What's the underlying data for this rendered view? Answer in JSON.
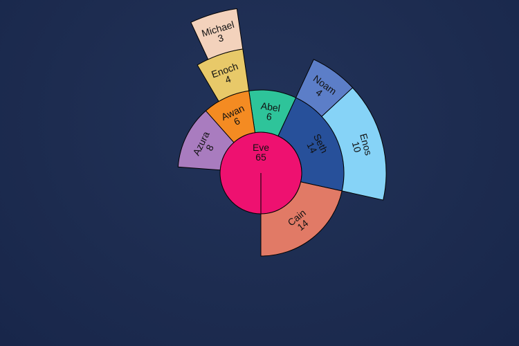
{
  "chart_data": {
    "type": "sunburst",
    "root": {
      "label": "Eve",
      "value": 65
    },
    "nodes": [
      {
        "id": "Eve",
        "label": "Eve",
        "parent": "",
        "value": 65,
        "color": "#ee1170"
      },
      {
        "id": "Cain",
        "label": "Cain",
        "parent": "Eve",
        "value": 14,
        "color": "#e17a66"
      },
      {
        "id": "Seth",
        "label": "Seth",
        "parent": "Eve",
        "value": 14,
        "color": "#27509a"
      },
      {
        "id": "Abel",
        "label": "Abel",
        "parent": "Eve",
        "value": 6,
        "color": "#2ec49a"
      },
      {
        "id": "Awan",
        "label": "Awan",
        "parent": "Eve",
        "value": 6,
        "color": "#f48b22"
      },
      {
        "id": "Azura",
        "label": "Azura",
        "parent": "Eve",
        "value": 8,
        "color": "#a97cbf"
      },
      {
        "id": "Enos",
        "label": "Enos",
        "parent": "Seth",
        "value": 10,
        "color": "#86d3f7"
      },
      {
        "id": "Noam",
        "label": "Noam",
        "parent": "Seth",
        "value": 4,
        "color": "#5c7ec8"
      },
      {
        "id": "Enoch",
        "label": "Enoch",
        "parent": "Awan",
        "value": 4,
        "color": "#e8c969"
      },
      {
        "id": "Michael",
        "label": "Michael",
        "parent": "Enoch",
        "value": 3,
        "color": "#f3d2bc"
      }
    ],
    "order": [
      "Cain",
      "Seth",
      "Abel",
      "Awan",
      "Azura"
    ],
    "start_angle_deg": 180,
    "direction": "counterclockwise",
    "total": 65
  }
}
